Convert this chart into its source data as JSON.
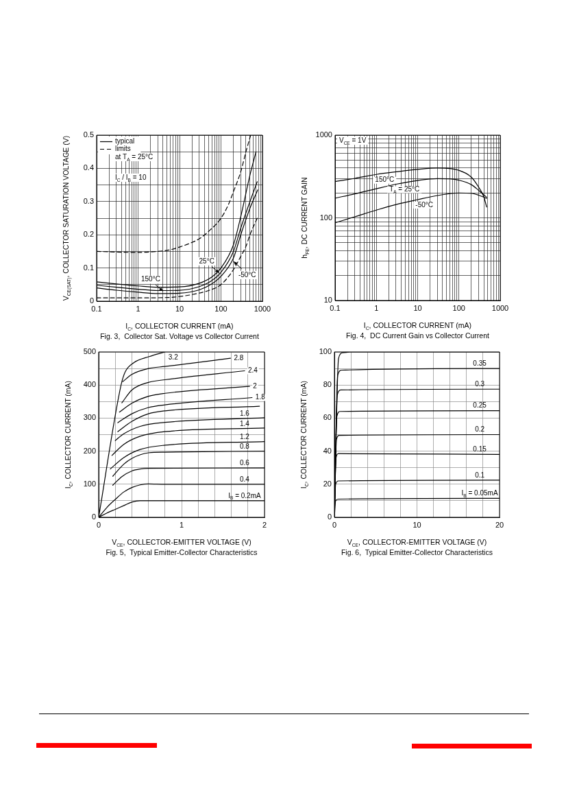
{
  "chart_data": [
    {
      "type": "line",
      "title": "Fig. 3,  Collector Sat. Voltage vs Collector Current",
      "xlabel": "I$_{C}$, COLLECTOR CURRENT (mA)",
      "ylabel": "V$_{CE(SAT)}$, COLLECTOR SATURATION VOLTAGE (V)",
      "log": "x",
      "grid": true,
      "legend": "top left",
      "xlim": [
        0.1,
        1000
      ],
      "xticks": [
        0.1,
        {
          "value": 0.2,
          "label": null
        },
        {
          "value": 0.3,
          "label": null
        },
        {
          "value": 0.4,
          "label": null
        },
        {
          "value": 0.5,
          "label": null
        },
        {
          "value": 0.6,
          "label": null
        },
        {
          "value": 0.7,
          "label": null
        },
        {
          "value": 0.8,
          "label": null
        },
        {
          "value": 0.9,
          "label": null
        },
        1,
        {
          "value": 2,
          "label": null
        },
        {
          "value": 3,
          "label": null
        },
        {
          "value": 4,
          "label": null
        },
        {
          "value": 5,
          "label": null
        },
        {
          "value": 6,
          "label": null
        },
        {
          "value": 7,
          "label": null
        },
        {
          "value": 8,
          "label": null
        },
        {
          "value": 9,
          "label": null
        },
        10,
        {
          "value": 20,
          "label": null
        },
        {
          "value": 30,
          "label": null
        },
        {
          "value": 40,
          "label": null
        },
        {
          "value": 50,
          "label": null
        },
        {
          "value": 60,
          "label": null
        },
        {
          "value": 70,
          "label": null
        },
        {
          "value": 80,
          "label": null
        },
        {
          "value": 90,
          "label": null
        },
        100,
        {
          "value": 200,
          "label": null
        },
        {
          "value": 300,
          "label": null
        },
        {
          "value": 400,
          "label": null
        },
        {
          "value": 500,
          "label": null
        },
        {
          "value": 600,
          "label": null
        },
        {
          "value": 700,
          "label": null
        },
        {
          "value": 800,
          "label": null
        },
        {
          "value": 900,
          "label": null
        },
        1000
      ],
      "ylim": [
        0,
        0.5
      ],
      "yticks": [
        0,
        {
          "value": 0.05,
          "label": null
        },
        0.1,
        {
          "value": 0.15,
          "label": null
        },
        0.2,
        {
          "value": 0.25,
          "label": null
        },
        0.3,
        {
          "value": 0.35,
          "label": null
        },
        0.4,
        {
          "value": 0.45,
          "label": null
        },
        0.5
      ],
      "annotations": [
        "at T$_{A}$ = 25°C",
        "I$_{C}$ / I$_{B}$ = 10",
        {
          "text": "150°C",
          "x": 4,
          "y": 0.03
        },
        {
          "text": "25°C",
          "x": 90,
          "y": 0.085
        },
        {
          "text": "-50°C",
          "x": 200,
          "y": 0.12
        }
      ],
      "series": [
        {
          "name": "typical",
          "color": "#000000",
          "x": [
            0.1,
            0.3,
            1,
            3,
            10,
            30,
            60,
            100,
            200,
            300,
            500,
            700
          ],
          "values": [
            0.058,
            0.052,
            0.046,
            0.042,
            0.043,
            0.054,
            0.073,
            0.1,
            0.17,
            0.255,
            0.38,
            0.45
          ]
        },
        {
          "color": "#000000",
          "x": [
            0.1,
            0.3,
            1,
            3,
            10,
            30,
            60,
            100,
            200,
            300,
            500,
            750
          ],
          "values": [
            0.048,
            0.042,
            0.036,
            0.032,
            0.033,
            0.044,
            0.062,
            0.087,
            0.15,
            0.22,
            0.3,
            0.36
          ]
        },
        {
          "color": "#000000",
          "x": [
            0.1,
            0.3,
            1,
            3,
            10,
            30,
            60,
            100,
            200,
            300,
            500,
            770
          ],
          "values": [
            0.04,
            0.033,
            0.027,
            0.023,
            0.024,
            0.034,
            0.052,
            0.075,
            0.13,
            0.2,
            0.28,
            0.335
          ]
        },
        {
          "name": "limits",
          "color": "#000000",
          "line_style": "dashed",
          "x": [
            0.1,
            0.3,
            1,
            3,
            6,
            10,
            20,
            30,
            50,
            100,
            150,
            200,
            300,
            400,
            520
          ],
          "values": [
            0.15,
            0.148,
            0.147,
            0.15,
            0.155,
            0.163,
            0.177,
            0.188,
            0.21,
            0.25,
            0.29,
            0.33,
            0.39,
            0.45,
            0.5
          ]
        },
        {
          "color": "#000000",
          "line_style": "dashed",
          "x": [
            0.1,
            1,
            5,
            10,
            20,
            50,
            100,
            200,
            300,
            400,
            500,
            750
          ],
          "values": [
            0.01,
            0.01,
            0.011,
            0.014,
            0.02,
            0.032,
            0.05,
            0.095,
            0.135,
            0.165,
            0.2,
            0.25
          ]
        }
      ]
    },
    {
      "type": "line",
      "title": "Fig. 4,  DC Current Gain vs Collector Current",
      "xlabel": "I$_{C}$, COLLECTOR CURRENT (mA)",
      "ylabel": "h$_{FE}$, DC CURRENT GAIN",
      "log": "xy",
      "grid": true,
      "xlim": [
        0.1,
        1000
      ],
      "xticks": [
        0.1,
        {
          "value": 0.2,
          "label": null
        },
        {
          "value": 0.3,
          "label": null
        },
        {
          "value": 0.4,
          "label": null
        },
        {
          "value": 0.5,
          "label": null
        },
        {
          "value": 0.6,
          "label": null
        },
        {
          "value": 0.7,
          "label": null
        },
        {
          "value": 0.8,
          "label": null
        },
        {
          "value": 0.9,
          "label": null
        },
        1,
        {
          "value": 2,
          "label": null
        },
        {
          "value": 3,
          "label": null
        },
        {
          "value": 4,
          "label": null
        },
        {
          "value": 5,
          "label": null
        },
        {
          "value": 6,
          "label": null
        },
        {
          "value": 7,
          "label": null
        },
        {
          "value": 8,
          "label": null
        },
        {
          "value": 9,
          "label": null
        },
        10,
        {
          "value": 20,
          "label": null
        },
        {
          "value": 30,
          "label": null
        },
        {
          "value": 40,
          "label": null
        },
        {
          "value": 50,
          "label": null
        },
        {
          "value": 60,
          "label": null
        },
        {
          "value": 70,
          "label": null
        },
        {
          "value": 80,
          "label": null
        },
        {
          "value": 90,
          "label": null
        },
        100,
        {
          "value": 200,
          "label": null
        },
        {
          "value": 300,
          "label": null
        },
        {
          "value": 400,
          "label": null
        },
        {
          "value": 500,
          "label": null
        },
        {
          "value": 600,
          "label": null
        },
        {
          "value": 700,
          "label": null
        },
        {
          "value": 800,
          "label": null
        },
        {
          "value": 900,
          "label": null
        },
        1000
      ],
      "ylim": [
        10,
        1000
      ],
      "yticks": [
        10,
        {
          "value": 20,
          "label": null
        },
        {
          "value": 30,
          "label": null
        },
        {
          "value": 40,
          "label": null
        },
        {
          "value": 50,
          "label": null
        },
        {
          "value": 60,
          "label": null
        },
        {
          "value": 70,
          "label": null
        },
        {
          "value": 80,
          "label": null
        },
        {
          "value": 90,
          "label": null
        },
        100,
        {
          "value": 200,
          "label": null
        },
        {
          "value": 300,
          "label": null
        },
        {
          "value": 400,
          "label": null
        },
        {
          "value": 500,
          "label": null
        },
        {
          "value": 600,
          "label": null
        },
        {
          "value": 700,
          "label": null
        },
        {
          "value": 800,
          "label": null
        },
        {
          "value": 900,
          "label": null
        },
        1000
      ],
      "annotations": [
        "V$_{CE}$ = 1V"
      ],
      "series": [
        {
          "name": "150°C",
          "color": "#000000",
          "x": [
            0.1,
            0.3,
            1,
            3,
            10,
            30,
            60,
            100,
            200,
            300,
            400,
            470
          ],
          "values": [
            275,
            300,
            335,
            360,
            385,
            400,
            395,
            375,
            310,
            235,
            180,
            135
          ]
        },
        {
          "name": "T$_{A}$ = 25°C",
          "color": "#000000",
          "x": [
            0.1,
            0.3,
            1,
            3,
            10,
            30,
            60,
            100,
            200,
            300,
            470
          ],
          "values": [
            173,
            195,
            225,
            255,
            283,
            298,
            296,
            285,
            252,
            215,
            177
          ]
        },
        {
          "name": "-50°C",
          "color": "#000000",
          "x": [
            0.1,
            0.3,
            1,
            3,
            10,
            30,
            100,
            200,
            300,
            470
          ],
          "values": [
            87,
            103,
            124,
            145,
            166,
            186,
            200,
            198,
            188,
            172
          ]
        }
      ]
    },
    {
      "type": "line",
      "title": "Fig. 5,  Typical Emitter-Collector Characteristics",
      "xlabel": "V$_{CE}$, COLLECTOR-EMITTER VOLTAGE (V)",
      "ylabel": "I$_{C}$, COLLECTOR CURRENT (mA)",
      "grid": true,
      "xlim": [
        0,
        2
      ],
      "xticks": [
        0,
        {
          "value": 0.2,
          "label": null
        },
        {
          "value": 0.4,
          "label": null
        },
        {
          "value": 0.6,
          "label": null
        },
        {
          "value": 0.8,
          "label": null
        },
        1,
        {
          "value": 1.2,
          "label": null
        },
        {
          "value": 1.4,
          "label": null
        },
        {
          "value": 1.6,
          "label": null
        },
        {
          "value": 1.8,
          "label": null
        },
        2
      ],
      "ylim": [
        0,
        500
      ],
      "yticks": [
        0,
        {
          "value": 50,
          "label": null
        },
        100,
        {
          "value": 150,
          "label": null
        },
        200,
        {
          "value": 250,
          "label": null
        },
        300,
        {
          "value": 350,
          "label": null
        },
        400,
        {
          "value": 450,
          "label": null
        },
        500
      ],
      "series": [
        {
          "name": "I$_{B}$ = 0.2mA",
          "color": "#000000",
          "x": [
            0,
            0.1,
            0.2,
            0.3,
            0.4,
            0.5,
            0.6,
            2
          ],
          "values": [
            0,
            13,
            24,
            35,
            46,
            50,
            50,
            50
          ]
        },
        {
          "name": "0.4",
          "color": "#000000",
          "x": [
            0,
            0.1,
            0.2,
            0.3,
            0.4,
            0.5,
            0.6,
            0.8,
            2
          ],
          "values": [
            0,
            30,
            54,
            76,
            90,
            98,
            101,
            100,
            100
          ]
        },
        {
          "name": "0.6",
          "color": "#000000",
          "x": [
            0.17,
            0.28,
            0.4,
            0.5,
            0.6,
            2
          ],
          "values": [
            97,
            123,
            140,
            146,
            148,
            149
          ]
        },
        {
          "name": "0.8",
          "color": "#000000",
          "x": [
            0.17,
            0.3,
            0.4,
            0.6,
            0.8,
            2
          ],
          "values": [
            124,
            160,
            178,
            195,
            197,
            200
          ]
        },
        {
          "name": "1.2",
          "color": "#000000",
          "x": [
            0.14,
            0.3,
            0.5,
            0.8,
            2
          ],
          "values": [
            146,
            180,
            205,
            218,
            229
          ]
        },
        {
          "name": "1.4",
          "color": "#000000",
          "x": [
            0.16,
            0.3,
            0.5,
            0.8,
            2
          ],
          "values": [
            187,
            220,
            245,
            259,
            270
          ]
        },
        {
          "name": "1.6",
          "color": "#000000",
          "x": [
            0.2,
            0.3,
            0.5,
            0.8,
            2
          ],
          "values": [
            232,
            252,
            275,
            287,
            301
          ]
        },
        {
          "color": "#000000",
          "x": [
            0.23,
            0.4,
            0.6,
            0.8,
            1.94
          ],
          "values": [
            259,
            290,
            313,
            322,
            336
          ]
        },
        {
          "name": "1.8",
          "color": "#000000",
          "x": [
            0.23,
            0.4,
            0.6,
            0.8,
            1.85
          ],
          "values": [
            286,
            313,
            332,
            340,
            362
          ]
        },
        {
          "name": "2",
          "color": "#000000",
          "x": [
            0.25,
            0.4,
            0.6,
            0.8,
            1.82
          ],
          "values": [
            318,
            345,
            366,
            375,
            396
          ]
        },
        {
          "name": "2.4",
          "color": "#000000",
          "x": [
            0.28,
            0.4,
            0.6,
            0.8,
            1.76
          ],
          "values": [
            346,
            385,
            408,
            416,
            443
          ]
        },
        {
          "name": "2.8",
          "color": "#000000",
          "x": [
            0.29,
            0.4,
            0.6,
            0.8,
            1.59
          ],
          "values": [
            410,
            432,
            450,
            456,
            481
          ]
        },
        {
          "name": "3.2",
          "color": "#000000",
          "x": [
            0,
            0.27,
            0.32,
            0.42,
            0.61,
            0.8
          ],
          "values": [
            0,
            400,
            440,
            467,
            486,
            500
          ]
        }
      ]
    },
    {
      "type": "line",
      "title": "Fig. 6,  Typical Emitter-Collector Characteristics",
      "xlabel": "V$_{CE}$, COLLECTOR-EMITTER VOLTAGE (V)",
      "ylabel": "I$_{C}$, COLLECTOR CURRENT (mA)",
      "grid": true,
      "xlim": [
        0,
        20
      ],
      "xticks": [
        0,
        {
          "value": 2,
          "label": null
        },
        {
          "value": 4,
          "label": null
        },
        {
          "value": 6,
          "label": null
        },
        {
          "value": 8,
          "label": null
        },
        10,
        {
          "value": 12,
          "label": null
        },
        {
          "value": 14,
          "label": null
        },
        {
          "value": 16,
          "label": null
        },
        {
          "value": 18,
          "label": null
        },
        20
      ],
      "ylim": [
        0,
        100
      ],
      "yticks": [
        0,
        {
          "value": 10,
          "label": null
        },
        20,
        {
          "value": 30,
          "label": null
        },
        40,
        {
          "value": 50,
          "label": null
        },
        60,
        {
          "value": 70,
          "label": null
        },
        80,
        {
          "value": 90,
          "label": null
        },
        100
      ],
      "series": [
        {
          "name": "I$_{B}$ = 0.05mA",
          "color": "#000000",
          "x": [
            0,
            0.15,
            0.5,
            20
          ],
          "values": [
            0,
            10,
            11,
            11.5
          ]
        },
        {
          "name": "0.1",
          "color": "#000000",
          "x": [
            0,
            0.15,
            0.5,
            20
          ],
          "values": [
            0,
            20,
            22,
            22.5
          ]
        },
        {
          "name": "0.15",
          "color": "#000000",
          "x": [
            0,
            0.2,
            0.5,
            20
          ],
          "values": [
            0,
            36,
            38.5,
            38
          ]
        },
        {
          "name": "0.2",
          "color": "#000000",
          "x": [
            0,
            0.25,
            0.6,
            20
          ],
          "values": [
            0,
            47,
            49.5,
            50
          ]
        },
        {
          "name": "0.25",
          "color": "#000000",
          "x": [
            0,
            0.3,
            0.7,
            20
          ],
          "values": [
            0,
            61,
            64,
            64.5
          ]
        },
        {
          "name": "0.3",
          "color": "#000000",
          "x": [
            0,
            0.35,
            0.8,
            20
          ],
          "values": [
            0,
            74,
            77,
            77.5
          ]
        },
        {
          "name": "0.35",
          "color": "#000000",
          "x": [
            0,
            0.4,
            0.9,
            20
          ],
          "values": [
            0,
            86,
            89,
            90
          ]
        },
        {
          "color": "#000000",
          "x": [
            0,
            0.5,
            1,
            2,
            20
          ],
          "values": [
            0,
            96,
            99.5,
            100,
            100
          ]
        }
      ]
    }
  ]
}
